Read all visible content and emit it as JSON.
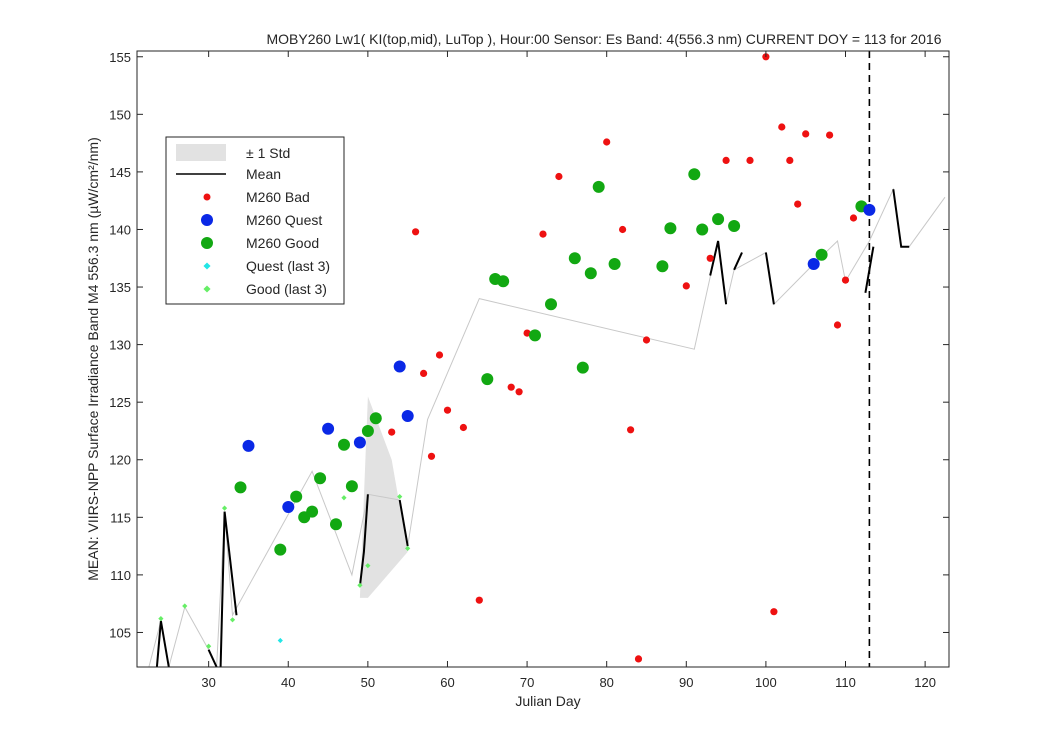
{
  "chart_data": {
    "type": "scatter",
    "title": "MOBY260   Lw1( KI(top,mid), LuTop ),   Hour:00 Sensor: Es Band: 4(556.3 nm)   CURRENT DOY = 113 for 2016",
    "xlabel": "Julian Day",
    "ylabel": "MEAN: VIIRS-NPP Surface Irradiance Band M4 556.3 nm (µW/cm²/nm)",
    "xlim": [
      21,
      123
    ],
    "ylim": [
      102,
      155.5
    ],
    "xticks": [
      30,
      40,
      50,
      60,
      70,
      80,
      90,
      100,
      110,
      120
    ],
    "yticks": [
      105,
      110,
      115,
      120,
      125,
      130,
      135,
      140,
      145,
      150,
      155
    ],
    "current_doy": 113,
    "legend": {
      "placement": "top-left",
      "entries": [
        "± 1 Std",
        "Mean",
        "M260 Bad",
        "M260 Quest",
        "M260 Good",
        "Quest (last 3)",
        "Good (last 3)"
      ]
    },
    "colors": {
      "bad": "#ee1111",
      "quest": "#0a28e6",
      "good": "#12a812",
      "quest_last3": "#22e6e6",
      "good_last3": "#66ee66",
      "std_fill": "#e2e2e2",
      "mean": "#000000",
      "mean_thin": "#c8c8c8"
    },
    "std_band": [
      {
        "x": 49,
        "y": 108
      },
      {
        "x": 50,
        "y": 125.5
      },
      {
        "x": 53,
        "y": 120
      },
      {
        "x": 55,
        "y": 112
      },
      {
        "x": 50,
        "y": 108
      }
    ],
    "mean_thin": [
      [
        22.5,
        101.5
      ],
      [
        24,
        106
      ],
      [
        25,
        101.8
      ],
      [
        27,
        107.2
      ],
      [
        30,
        103.5
      ],
      [
        31,
        101.8
      ],
      [
        32,
        115.5
      ],
      [
        33,
        106.5
      ],
      [
        43,
        119
      ],
      [
        48,
        110
      ],
      [
        50,
        117
      ],
      [
        54,
        116.5
      ],
      [
        55,
        112.5
      ],
      [
        57.5,
        123.5
      ],
      [
        64,
        134
      ],
      [
        91,
        129.6
      ],
      [
        94,
        139
      ],
      [
        95,
        133.5
      ],
      [
        96,
        136.5
      ],
      [
        100,
        138
      ],
      [
        101,
        133.5
      ],
      [
        106,
        137
      ],
      [
        109,
        139
      ],
      [
        110,
        135.5
      ],
      [
        113,
        139
      ],
      [
        116,
        143.5
      ],
      [
        117,
        138.5
      ],
      [
        118,
        138.5
      ],
      [
        122.5,
        142.8
      ]
    ],
    "mean_segments": [
      [
        [
          23.5,
          101.8
        ],
        [
          24,
          106
        ],
        [
          25,
          101.8
        ]
      ],
      [
        [
          30,
          103.5
        ],
        [
          31,
          101.8
        ]
      ],
      [
        [
          31.5,
          101.8
        ],
        [
          32,
          115.5
        ],
        [
          33.5,
          106.5
        ]
      ],
      [
        [
          49,
          109
        ],
        [
          49.5,
          112
        ],
        [
          50,
          117
        ]
      ],
      [
        [
          54,
          116.5
        ],
        [
          55,
          112.5
        ]
      ],
      [
        [
          93,
          136
        ],
        [
          94,
          139
        ],
        [
          95,
          133.5
        ]
      ],
      [
        [
          96,
          136.5
        ],
        [
          97,
          138
        ]
      ],
      [
        [
          100,
          138
        ],
        [
          101,
          133.5
        ]
      ],
      [
        [
          112.5,
          134.5
        ],
        [
          113.5,
          138.5
        ]
      ],
      [
        [
          116,
          143.5
        ],
        [
          117,
          138.5
        ],
        [
          118,
          138.5
        ]
      ]
    ],
    "series": [
      {
        "name": "M260 Bad",
        "points": [
          [
            56,
            139.8
          ],
          [
            57,
            127.5
          ],
          [
            58,
            120.3
          ],
          [
            59,
            129.1
          ],
          [
            60,
            124.3
          ],
          [
            62,
            122.8
          ],
          [
            64,
            107.8
          ],
          [
            68,
            126.3
          ],
          [
            69,
            125.9
          ],
          [
            70,
            131
          ],
          [
            72,
            139.6
          ],
          [
            74,
            144.6
          ],
          [
            80,
            147.6
          ],
          [
            82,
            140
          ],
          [
            83,
            122.6
          ],
          [
            84,
            102.7
          ],
          [
            85,
            130.4
          ],
          [
            90,
            135.1
          ],
          [
            93,
            137.5
          ],
          [
            95,
            146
          ],
          [
            98,
            146
          ],
          [
            100,
            155
          ],
          [
            101,
            106.8
          ],
          [
            102,
            148.9
          ],
          [
            103,
            146
          ],
          [
            104,
            142.2
          ],
          [
            105,
            148.3
          ],
          [
            108,
            148.2
          ],
          [
            109,
            131.7
          ],
          [
            110,
            135.6
          ],
          [
            111,
            141
          ],
          [
            53,
            122.4
          ]
        ]
      },
      {
        "name": "M260 Quest",
        "points": [
          [
            35,
            121.2
          ],
          [
            40,
            115.9
          ],
          [
            45,
            122.7
          ],
          [
            49,
            121.5
          ],
          [
            54,
            128.1
          ],
          [
            55,
            123.8
          ],
          [
            106,
            137
          ],
          [
            113,
            141.7
          ]
        ]
      },
      {
        "name": "M260 Good",
        "points": [
          [
            34,
            117.6
          ],
          [
            39,
            112.2
          ],
          [
            41,
            116.8
          ],
          [
            42,
            115
          ],
          [
            43,
            115.5
          ],
          [
            44,
            118.4
          ],
          [
            46,
            114.4
          ],
          [
            47,
            121.3
          ],
          [
            48,
            117.7
          ],
          [
            50,
            122.5
          ],
          [
            51,
            123.6
          ],
          [
            65,
            127
          ],
          [
            66,
            135.7
          ],
          [
            67,
            135.5
          ],
          [
            71,
            130.8
          ],
          [
            73,
            133.5
          ],
          [
            76,
            137.5
          ],
          [
            77,
            128
          ],
          [
            78,
            136.2
          ],
          [
            79,
            143.7
          ],
          [
            81,
            137
          ],
          [
            87,
            136.8
          ],
          [
            88,
            140.1
          ],
          [
            91,
            144.8
          ],
          [
            92,
            140
          ],
          [
            94,
            140.9
          ],
          [
            96,
            140.3
          ],
          [
            107,
            137.8
          ],
          [
            112,
            142
          ]
        ]
      },
      {
        "name": "Quest (last 3)",
        "points": [
          [
            39,
            104.3
          ]
        ]
      },
      {
        "name": "Good (last 3)",
        "points": [
          [
            24,
            106.2
          ],
          [
            27,
            107.3
          ],
          [
            30,
            103.8
          ],
          [
            32,
            115.8
          ],
          [
            33,
            106.1
          ],
          [
            47,
            116.7
          ],
          [
            49,
            109.1
          ],
          [
            50,
            110.8
          ],
          [
            54,
            116.8
          ],
          [
            55,
            112.3
          ]
        ]
      }
    ]
  }
}
